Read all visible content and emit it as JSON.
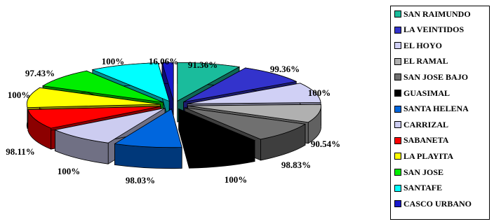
{
  "chart_data": {
    "type": "pie",
    "title": "",
    "categories": [
      "SAN RAIMUNDO",
      "LA VEINTIDOS",
      "EL HOYO",
      "EL RAMAL",
      "SAN JOSE BAJO",
      "GUASIMAL",
      "SANTA HELENA",
      "CARRIZAL",
      "SABANETA",
      "LA PLAYITA",
      "SAN JOSE",
      "SANTAFE",
      "CASCO URBANO"
    ],
    "labels": [
      "91.36%",
      "99.36%",
      "100%",
      "90.54%",
      "98.83%",
      "100%",
      "98.03%",
      "100%",
      "98.11%",
      "100%",
      "97.43%",
      "100%",
      "16.06%"
    ],
    "values": [
      91.36,
      99.36,
      100,
      90.54,
      98.83,
      100,
      98.03,
      100,
      98.11,
      100,
      97.43,
      100,
      16.06
    ],
    "colors": [
      "#1abc9c",
      "#3333cc",
      "#d0d0f5",
      "#b0b0b0",
      "#707070",
      "#000000",
      "#0066dd",
      "#ccccf0",
      "#ff0000",
      "#ffff00",
      "#00ee00",
      "#00ffff",
      "#1a1acc"
    ],
    "legend_position": "right",
    "style": "exploded-3d"
  }
}
